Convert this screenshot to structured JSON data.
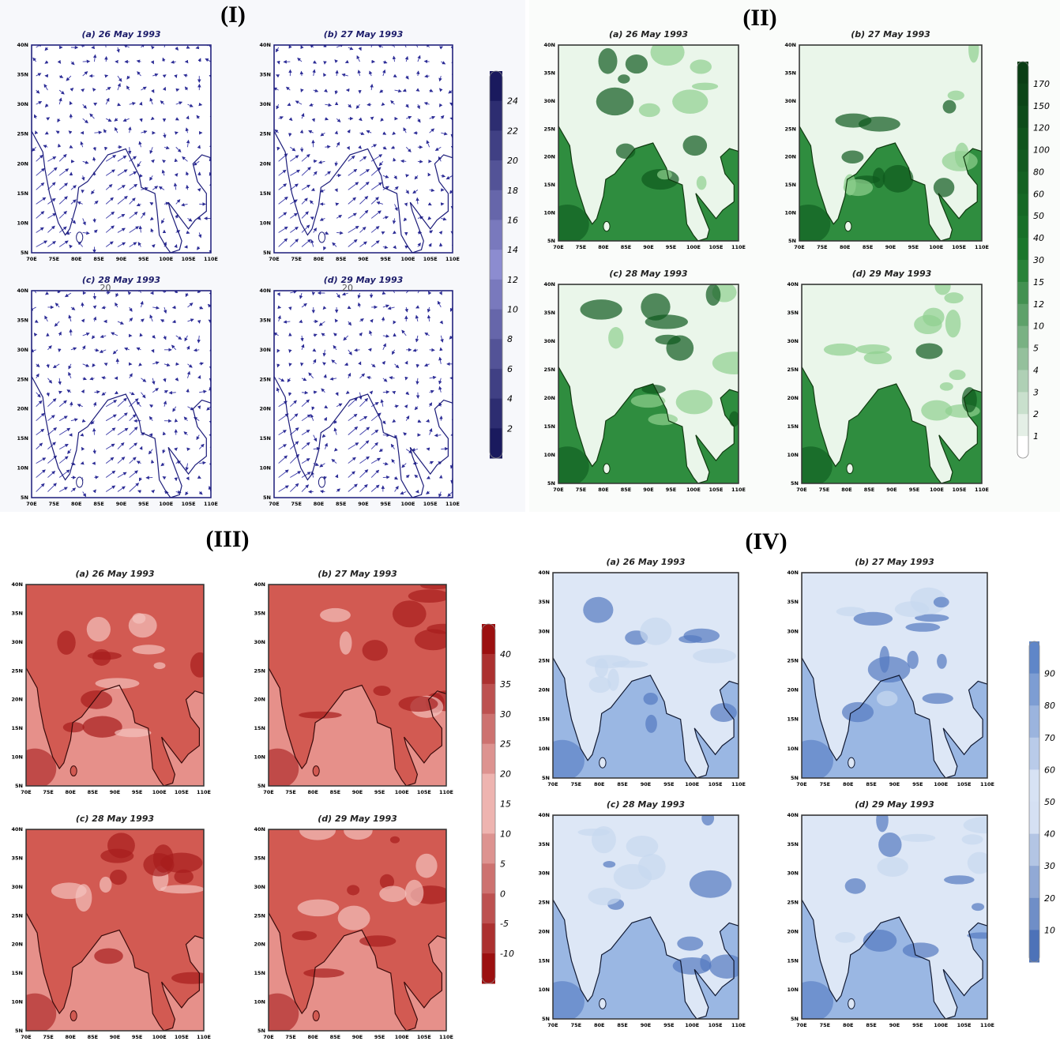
{
  "panels": [
    {
      "label": "(I)",
      "subplots": [
        {
          "title": "(a) 26 May 1993"
        },
        {
          "title": "(b) 27 May 1993"
        },
        {
          "title": "(c) 28 May 1993",
          "note": "20"
        },
        {
          "title": "(d) 29 May 1993",
          "note": "20"
        }
      ],
      "colorbar": [
        24,
        22,
        20,
        18,
        16,
        14,
        12,
        10,
        8,
        6,
        4,
        2
      ]
    },
    {
      "label": "(II)",
      "subplots": [
        {
          "title": "(a) 26 May 1993"
        },
        {
          "title": "(b) 27 May 1993"
        },
        {
          "title": "(c) 28 May 1993"
        },
        {
          "title": "(d) 29 May 1993"
        }
      ],
      "colorbar": [
        170,
        150,
        120,
        100,
        80,
        60,
        50,
        40,
        30,
        15,
        12,
        10,
        5,
        4,
        3,
        2,
        1
      ]
    },
    {
      "label": "(III)",
      "subplots": [
        {
          "title": "(a) 26 May 1993"
        },
        {
          "title": "(b) 27 May 1993"
        },
        {
          "title": "(c) 28 May 1993"
        },
        {
          "title": "(d) 29 May 1993"
        }
      ],
      "colorbar": [
        40,
        35,
        30,
        25,
        20,
        15,
        10,
        5,
        0,
        -5,
        -10
      ]
    },
    {
      "label": "(IV)",
      "subplots": [
        {
          "title": "(a) 26 May 1993"
        },
        {
          "title": "(b) 27 May 1993"
        },
        {
          "title": "(c) 28 May 1993"
        },
        {
          "title": "(d) 29 May 1993"
        }
      ],
      "colorbar": [
        90,
        80,
        70,
        60,
        50,
        40,
        30,
        20,
        10
      ]
    }
  ],
  "lon_ticks": [
    "70E",
    "75E",
    "80E",
    "85E",
    "90E",
    "95E",
    "100E",
    "105E",
    "110E"
  ],
  "lat_ticks": [
    "5N",
    "10N",
    "15N",
    "20N",
    "25N",
    "30N",
    "35N",
    "40N"
  ]
}
